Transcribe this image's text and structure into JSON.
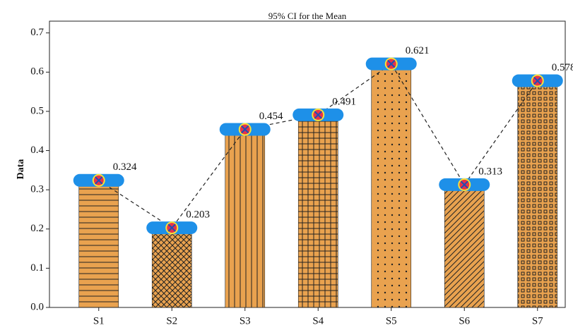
{
  "chart_data": {
    "type": "bar",
    "title": "95% CI for the Mean",
    "y_label": "Data",
    "categories": [
      "S1",
      "S2",
      "S3",
      "S4",
      "S5",
      "S6",
      "S7"
    ],
    "values": [
      0.324,
      0.203,
      0.454,
      0.491,
      0.621,
      0.313,
      0.578
    ],
    "color": "#e9a24f",
    "marker_color": "#1e90e8",
    "line_color": "#222222",
    "ylim": [
      0,
      0.73
    ],
    "yticks": [
      {
        "value": 0,
        "label": "0.0"
      },
      0.1,
      0.2,
      0.3,
      0.4,
      0.5,
      0.6,
      0.7
    ]
  }
}
